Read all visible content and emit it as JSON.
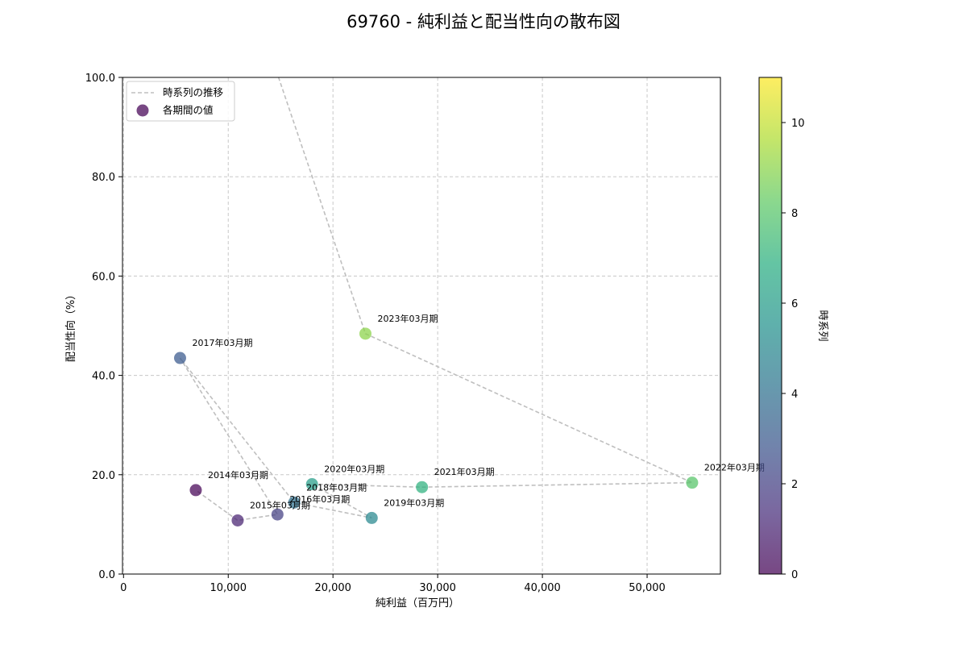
{
  "chart_data": {
    "type": "scatter",
    "title": "69760 - 純利益と配当性向の散布図",
    "xlabel": "純利益（百万円）",
    "ylabel": "配当性向（%）",
    "xlim": [
      -100,
      57000
    ],
    "ylim": [
      0,
      100
    ],
    "x_ticks": [
      0,
      10000,
      20000,
      30000,
      40000,
      50000
    ],
    "x_tick_labels": [
      "0",
      "10,000",
      "20,000",
      "30,000",
      "40,000",
      "50,000"
    ],
    "y_ticks": [
      0,
      20,
      40,
      60,
      80,
      100
    ],
    "y_tick_labels": [
      "0.0",
      "20.0",
      "40.0",
      "60.0",
      "80.0",
      "100.0"
    ],
    "grid": true,
    "legend": {
      "placement": "top-left",
      "entries": [
        {
          "label": "時系列の推移",
          "kind": "line"
        },
        {
          "label": "各期間の値",
          "kind": "marker"
        }
      ]
    },
    "colorbar": {
      "label": "時系列",
      "range": [
        0,
        11
      ],
      "ticks": [
        0,
        2,
        4,
        6,
        8,
        10
      ],
      "tick_labels": [
        "0",
        "2",
        "4",
        "6",
        "8",
        "10"
      ],
      "colormap": "viridis"
    },
    "points": [
      {
        "period": "2014年03月期",
        "x": 6900,
        "y": 16.9,
        "t": 0
      },
      {
        "period": "2015年03月期",
        "x": 10900,
        "y": 10.8,
        "t": 1
      },
      {
        "period": "2016年03月期",
        "x": 14700,
        "y": 12.0,
        "t": 2
      },
      {
        "period": "2017年03月期",
        "x": 5400,
        "y": 43.5,
        "t": 3
      },
      {
        "period": "2018年03月期",
        "x": 16300,
        "y": 14.4,
        "t": 4
      },
      {
        "period": "2019年03月期",
        "x": 23700,
        "y": 11.3,
        "t": 5
      },
      {
        "period": "2020年03月期",
        "x": 18000,
        "y": 18.1,
        "t": 6
      },
      {
        "period": "2021年03月期",
        "x": 28500,
        "y": 17.5,
        "t": 7
      },
      {
        "period": "2022年03月期",
        "x": 54300,
        "y": 18.4,
        "t": 8
      },
      {
        "period": "2023年03月期",
        "x": 23100,
        "y": 48.4,
        "t": 9
      }
    ],
    "trend_start": {
      "x": 14000,
      "y": 105
    }
  }
}
